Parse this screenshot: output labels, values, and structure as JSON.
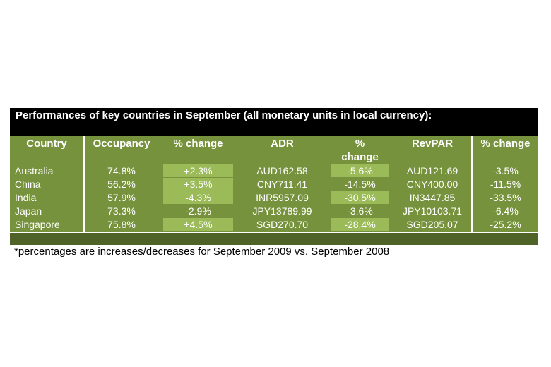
{
  "header": {
    "title": "Performances of key countries in September (all monetary units in local currency):"
  },
  "table": {
    "columns": [
      "Country",
      "Occupancy",
      "% change",
      "ADR",
      "% change",
      "RevPAR",
      "% change"
    ],
    "rows": [
      [
        "Australia",
        "74.8%",
        "+2.3%",
        "AUD162.58",
        "-5.6%",
        "AUD121.69",
        "-3.5%"
      ],
      [
        "China",
        "56.2%",
        "+3.5%",
        "CNY711.41",
        "-14.5%",
        "CNY400.00",
        "-11.5%"
      ],
      [
        "India",
        "57.9%",
        "-4.3%",
        "INR5957.09",
        "-30.5%",
        "IN3447.85",
        "-33.5%"
      ],
      [
        "Japan",
        "73.3%",
        "-2.9%",
        "JPY13789.99",
        "-3.6%",
        "JPY10103.71",
        "-6.4%"
      ],
      [
        "Singapore",
        "75.8%",
        "+4.5%",
        "SGD270.70",
        "-28.4%",
        "SGD205.07",
        "-25.2%"
      ]
    ]
  },
  "footnote": "*percentages are increases/decreases for September 2009 vs. September 2008"
}
